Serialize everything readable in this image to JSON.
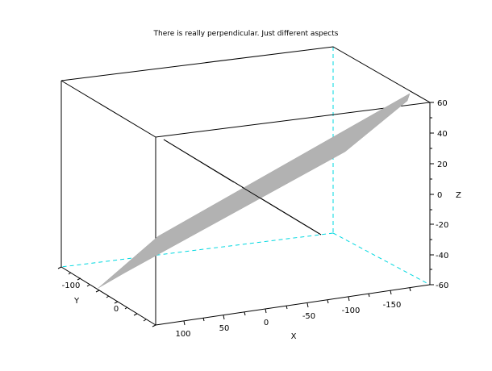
{
  "chart_data": {
    "type": "surface3d",
    "title": "There is really perpendicular. Just different aspects",
    "axes": {
      "x": {
        "label": "X",
        "ticks": [
          100,
          50,
          0,
          -50,
          -100,
          -150
        ]
      },
      "y": {
        "label": "Y",
        "ticks": [
          -100,
          0
        ]
      },
      "z": {
        "label": "Z",
        "ticks": [
          60,
          40,
          20,
          0,
          -20,
          -40,
          -60
        ]
      }
    },
    "surface": {
      "shape": "tilted planar strip",
      "color": "#b2b2b2",
      "z_range": [
        -60,
        60
      ]
    },
    "line": {
      "description": "straight line through the plane",
      "color": "#000000"
    },
    "hidden_edge_color": "#00d8e0",
    "box_edge_color": "#000000",
    "background": "#ffffff"
  }
}
